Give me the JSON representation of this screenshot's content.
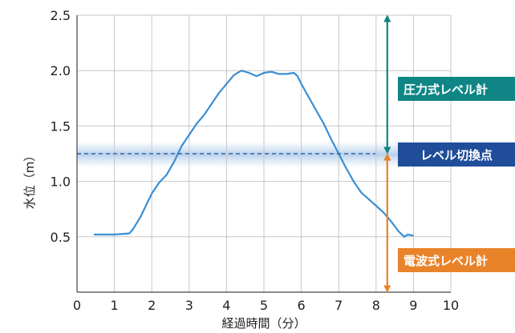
{
  "chart_data": {
    "type": "line",
    "xlabel": "経過時間（分）",
    "ylabel": "水位（m）",
    "xlim": [
      0,
      10
    ],
    "ylim": [
      0,
      2.5
    ],
    "x_ticks": [
      0,
      1,
      2,
      3,
      4,
      5,
      6,
      7,
      8,
      9,
      10
    ],
    "y_ticks": [
      0.5,
      1.0,
      1.5,
      2.0,
      2.5
    ],
    "x_tick_labels": [
      "0",
      "1",
      "2",
      "3",
      "4",
      "5",
      "6",
      "7",
      "8",
      "9",
      "10"
    ],
    "y_tick_labels": [
      "0.5",
      "1.0",
      "1.5",
      "2.0",
      "2.5"
    ],
    "grid": true,
    "series": [
      {
        "color": "#3a8fd4",
        "points": [
          [
            0.45,
            0.52
          ],
          [
            1.0,
            0.52
          ],
          [
            1.4,
            0.53
          ],
          [
            1.5,
            0.57
          ],
          [
            1.7,
            0.68
          ],
          [
            1.9,
            0.82
          ],
          [
            2.0,
            0.89
          ],
          [
            2.2,
            0.99
          ],
          [
            2.4,
            1.06
          ],
          [
            2.6,
            1.18
          ],
          [
            2.8,
            1.32
          ],
          [
            3.0,
            1.42
          ],
          [
            3.2,
            1.52
          ],
          [
            3.4,
            1.6
          ],
          [
            3.6,
            1.7
          ],
          [
            3.8,
            1.8
          ],
          [
            4.0,
            1.88
          ],
          [
            4.2,
            1.96
          ],
          [
            4.4,
            2.0
          ],
          [
            4.6,
            1.98
          ],
          [
            4.8,
            1.95
          ],
          [
            5.0,
            1.98
          ],
          [
            5.2,
            1.99
          ],
          [
            5.4,
            1.97
          ],
          [
            5.6,
            1.97
          ],
          [
            5.8,
            1.98
          ],
          [
            5.9,
            1.95
          ],
          [
            6.0,
            1.88
          ],
          [
            6.2,
            1.76
          ],
          [
            6.4,
            1.64
          ],
          [
            6.6,
            1.52
          ],
          [
            6.8,
            1.38
          ],
          [
            7.0,
            1.25
          ],
          [
            7.2,
            1.12
          ],
          [
            7.4,
            1.0
          ],
          [
            7.6,
            0.9
          ],
          [
            7.8,
            0.84
          ],
          [
            8.0,
            0.78
          ],
          [
            8.2,
            0.72
          ],
          [
            8.4,
            0.64
          ],
          [
            8.6,
            0.55
          ],
          [
            8.75,
            0.5
          ],
          [
            8.85,
            0.52
          ],
          [
            9.0,
            0.51
          ]
        ]
      }
    ],
    "threshold": {
      "y": 1.25,
      "color": "#1f4d9a"
    },
    "annotations": {
      "upper_label": "圧力式レベル計",
      "upper_color": "#0f8585",
      "switch_label": "レベル切換点",
      "switch_color": "#1f4d9a",
      "lower_label": "電波式レベル計",
      "lower_color": "#e8832a",
      "arrow_x": 8.3,
      "upper_range": [
        1.25,
        2.5
      ],
      "lower_range": [
        0,
        1.25
      ]
    }
  }
}
